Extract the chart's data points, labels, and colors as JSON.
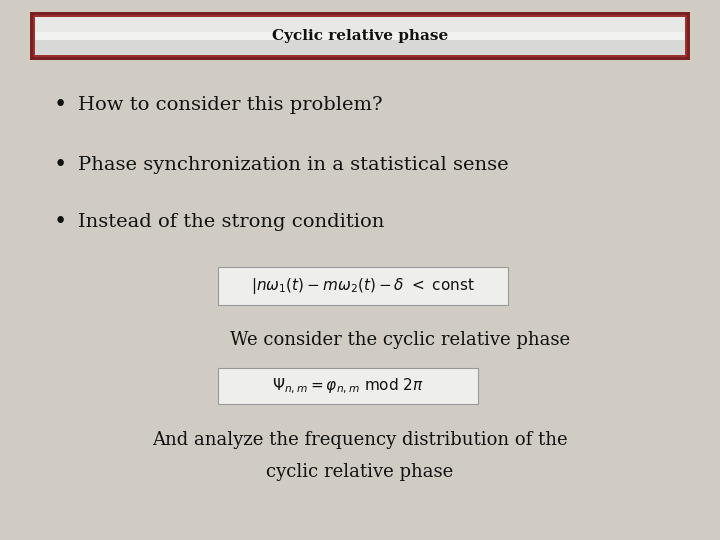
{
  "title": "Cyclic relative phase",
  "background_color": "#d0ccc4",
  "title_box_border_outer": "#7a2020",
  "title_box_fill": "#e8e8e6",
  "title_box_fill_center": "#f0f0ee",
  "bullet_items": [
    "How to consider this problem?",
    "Phase synchronization in a statistical sense",
    "Instead of the strong condition"
  ],
  "cyclic_text": "We consider the cyclic relative phase",
  "bottom_text_line1": "And analyze the frequency distribution of the",
  "bottom_text_line2": "cyclic relative phase",
  "title_fontsize": 11,
  "bullet_fontsize": 14,
  "formula_fontsize": 11,
  "body_fontsize": 13,
  "text_color": "#111111",
  "formula_bg": "#eeeeec"
}
